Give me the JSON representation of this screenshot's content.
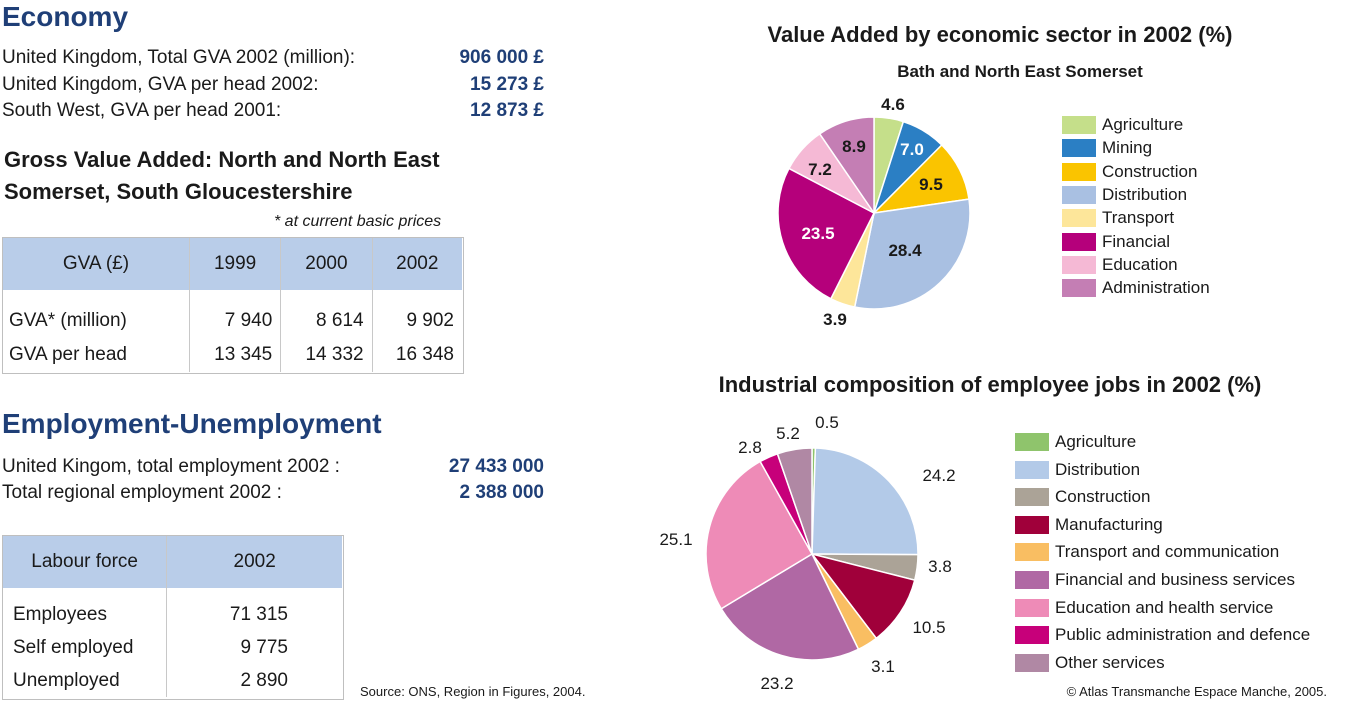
{
  "economy": {
    "heading": "Economy",
    "stats": [
      {
        "label": "United Kingdom, Total GVA 2002 (million):",
        "value": "906 000 £"
      },
      {
        "label": "United Kingdom, GVA per head 2002:",
        "value": "15 273 £"
      },
      {
        "label": "South West, GVA per head 2001:",
        "value": "12 873 £"
      }
    ]
  },
  "gva": {
    "title_line1": "Gross Value Added: North and North East",
    "title_line2": "Somerset, South Gloucestershire",
    "note": "* at current basic prices",
    "headers": [
      "GVA (£)",
      "1999",
      "2000",
      "2002"
    ],
    "rows": [
      {
        "label": "GVA* (million)",
        "values": [
          "7 940",
          "8 614",
          "9 902"
        ]
      },
      {
        "label": "GVA per head",
        "values": [
          "13 345",
          "14 332",
          "16 348"
        ]
      }
    ]
  },
  "employment": {
    "heading": "Employment-Unemployment",
    "stats": [
      {
        "label": "United Kingom, total employment 2002 :",
        "value": "27 433 000"
      },
      {
        "label": "Total regional employment 2002 :",
        "value": "2 388 000"
      }
    ]
  },
  "labour": {
    "headers": [
      "Labour force",
      "2002"
    ],
    "rows": [
      {
        "label": "Employees",
        "value": "71 315"
      },
      {
        "label": "Self employed",
        "value": "9 775"
      },
      {
        "label": "Unemployed",
        "value": "2 890"
      }
    ]
  },
  "footer": {
    "source": "Source: ONS, Region in Figures, 2004.",
    "copyright": "© Atlas Transmanche Espace Manche, 2005."
  },
  "chart_data": [
    {
      "type": "pie",
      "title": "Value Added by economic sector in 2002 (%)",
      "subtitle": "Bath and North East Somerset",
      "legend_position": "right",
      "slices": [
        {
          "name": "Agriculture",
          "value": 4.6,
          "label": "4.6",
          "color": "#c5df8a"
        },
        {
          "name": "Mining",
          "value": 7.0,
          "label": "7.0",
          "color": "#2b7fc4"
        },
        {
          "name": "Construction",
          "value": 9.5,
          "label": "9.5",
          "color": "#fac400"
        },
        {
          "name": "Distribution",
          "value": 28.4,
          "label": "28.4",
          "color": "#a9c0e2"
        },
        {
          "name": "Transport",
          "value": 3.9,
          "label": "3.9",
          "color": "#fde69a"
        },
        {
          "name": "Financial",
          "value": 23.5,
          "label": "23.5",
          "color": "#b5007b"
        },
        {
          "name": "Education",
          "value": 7.2,
          "label": "7.2",
          "color": "#f5b9d5"
        },
        {
          "name": "Administration",
          "value": 8.9,
          "label": "8.9",
          "color": "#c47eb4"
        }
      ]
    },
    {
      "type": "pie",
      "title": "Industrial composition of employee jobs in 2002 (%)",
      "legend_position": "right",
      "slices": [
        {
          "name": "Agriculture",
          "value": 0.5,
          "label": "0.5",
          "color": "#8fc46c"
        },
        {
          "name": "Distribution",
          "value": 24.2,
          "label": "24.2",
          "color": "#b3cae8"
        },
        {
          "name": "Construction",
          "value": 3.8,
          "label": "3.8",
          "color": "#aba397"
        },
        {
          "name": "Manufacturing",
          "value": 10.5,
          "label": "10.5",
          "color": "#a0003a"
        },
        {
          "name": "Transport and communication",
          "value": 3.1,
          "label": "3.1",
          "color": "#f9be62"
        },
        {
          "name": "Financial and business services",
          "value": 23.2,
          "label": "23.2",
          "color": "#b068a4"
        },
        {
          "name": "Education and health service",
          "value": 25.1,
          "label": "25.1",
          "color": "#ee8bb7"
        },
        {
          "name": "Public administration and defence",
          "value": 2.8,
          "label": "2.8",
          "color": "#c7007a"
        },
        {
          "name": "Other services",
          "value": 5.2,
          "label": "5.2",
          "color": "#b088a4"
        }
      ]
    }
  ]
}
